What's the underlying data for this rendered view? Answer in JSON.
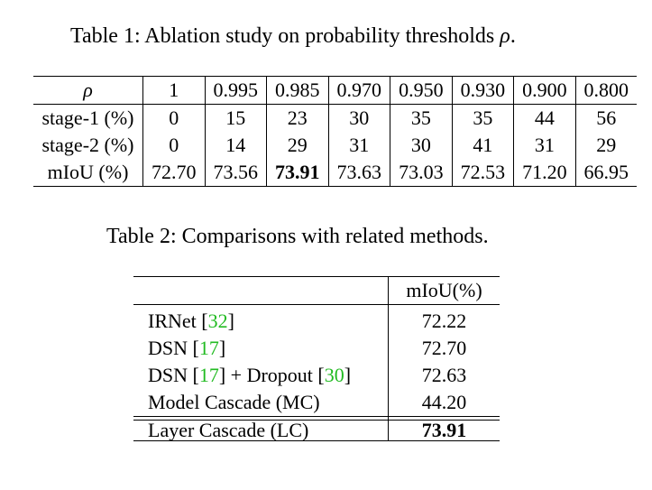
{
  "table1": {
    "caption_prefix": "Table 1: Ablation study on probability thresholds ",
    "caption_symbol": "ρ",
    "caption_suffix": ".",
    "header_label": "ρ",
    "thresholds": [
      "1",
      "0.995",
      "0.985",
      "0.970",
      "0.950",
      "0.930",
      "0.900",
      "0.800"
    ],
    "rows": [
      {
        "label": "stage-1 (%)",
        "values": [
          "0",
          "15",
          "23",
          "30",
          "35",
          "35",
          "44",
          "56"
        ]
      },
      {
        "label": "stage-2 (%)",
        "values": [
          "0",
          "14",
          "29",
          "31",
          "30",
          "41",
          "31",
          "29"
        ]
      },
      {
        "label": "mIoU (%)",
        "values": [
          "72.70",
          "73.56",
          "73.91",
          "73.63",
          "73.03",
          "72.53",
          "71.20",
          "66.95"
        ]
      }
    ],
    "bold_cell": {
      "row": 2,
      "col": 2
    }
  },
  "table2": {
    "caption": "Table 2: Comparisons with related methods.",
    "header": "mIoU(%)",
    "rows": [
      {
        "name": "IRNet [",
        "cite1": "32",
        "tail1": "]",
        "value": "72.22"
      },
      {
        "name": "DSN [",
        "cite1": "17",
        "tail1": "]",
        "value": "72.70"
      },
      {
        "name": "DSN [",
        "cite1": "17",
        "tail1": "] + Dropout [",
        "cite2": "30",
        "tail2": "]",
        "value": "72.63"
      },
      {
        "name": "Model Cascade (MC)",
        "value": "44.20"
      }
    ],
    "final_row": {
      "name": "Layer Cascade (LC)",
      "value": "73.91"
    }
  }
}
